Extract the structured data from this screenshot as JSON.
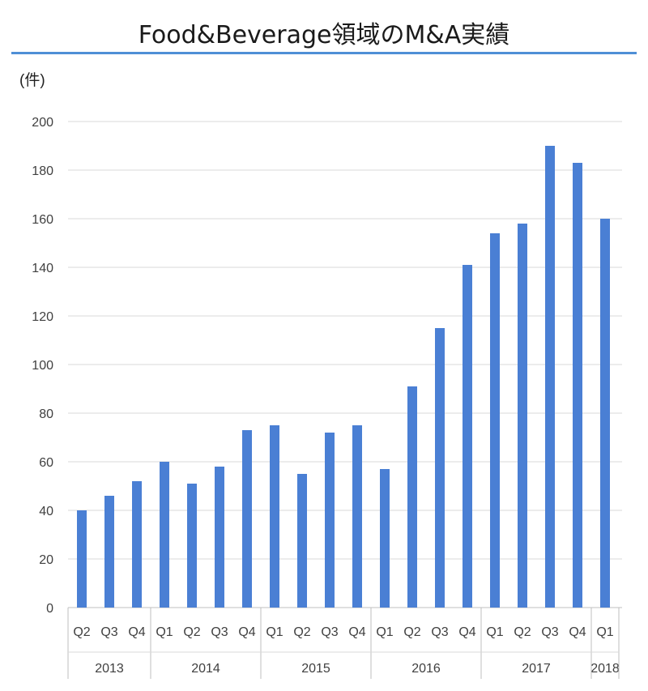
{
  "chart_data": {
    "type": "bar",
    "title": "Food&Beverage領域のM&A実績",
    "ylabel": "(件)",
    "xlabel": "",
    "ylim": [
      0,
      200
    ],
    "yticks": [
      0,
      20,
      40,
      60,
      80,
      100,
      120,
      140,
      160,
      180,
      200
    ],
    "grid": true,
    "legend": "none",
    "bar_color": "#4a7fd4",
    "categories": [
      "Q2",
      "Q3",
      "Q4",
      "Q1",
      "Q2",
      "Q3",
      "Q4",
      "Q1",
      "Q2",
      "Q3",
      "Q4",
      "Q1",
      "Q2",
      "Q3",
      "Q4",
      "Q1",
      "Q2",
      "Q3",
      "Q4",
      "Q1"
    ],
    "values": [
      40,
      46,
      52,
      60,
      51,
      58,
      73,
      75,
      55,
      72,
      75,
      57,
      91,
      115,
      141,
      154,
      158,
      190,
      183,
      160
    ],
    "year_groups": [
      {
        "label": "2013",
        "count": 3
      },
      {
        "label": "2014",
        "count": 4
      },
      {
        "label": "2015",
        "count": 4
      },
      {
        "label": "2016",
        "count": 4
      },
      {
        "label": "2017",
        "count": 4
      },
      {
        "label": "2018",
        "count": 1
      }
    ]
  }
}
